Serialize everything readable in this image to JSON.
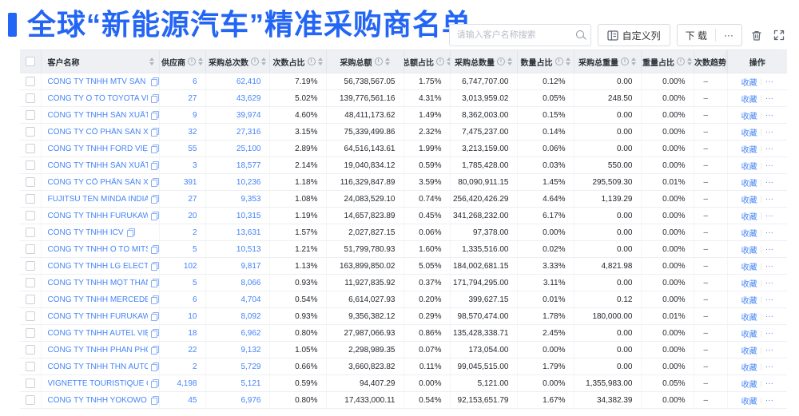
{
  "page": {
    "title": "全球“新能源汽车”精准采购商名单"
  },
  "colors": {
    "title_accent": "#2365F5",
    "link_blue": "#4584F8",
    "header_bg": "#EEF0F4"
  },
  "toolbar": {
    "search_placeholder": "请输入客户名称搜索",
    "custom_columns_label": "自定义列",
    "download_label": "下 载",
    "more_label": "···"
  },
  "icons": {
    "search": "magnifier",
    "custom_columns": "columns-grid",
    "download_more": "ellipsis",
    "trash": "trash-can",
    "fullscreen": "expand-arrows",
    "copy": "copy-squares",
    "info": "circle-i",
    "sort": "caret-up-down"
  },
  "table": {
    "columns": [
      {
        "key": "name",
        "label": "客户名称",
        "info": false,
        "sort": true
      },
      {
        "key": "supplier",
        "label": "供应商",
        "info": true,
        "sort": true
      },
      {
        "key": "purchases",
        "label": "采购总次数",
        "info": true,
        "sort": true
      },
      {
        "key": "count_pct",
        "label": "次数占比",
        "info": true,
        "sort": true
      },
      {
        "key": "amount",
        "label": "采购总额",
        "info": true,
        "sort": true
      },
      {
        "key": "amount_pct",
        "label": "总额占比",
        "info": true,
        "sort": true
      },
      {
        "key": "quantity",
        "label": "采购总数量",
        "info": true,
        "sort": true
      },
      {
        "key": "qty_pct",
        "label": "数量占比",
        "info": true,
        "sort": true
      },
      {
        "key": "weight",
        "label": "采购总重量",
        "info": true,
        "sort": true
      },
      {
        "key": "weight_pct",
        "label": "重量占比",
        "info": true,
        "sort": true
      },
      {
        "key": "trend",
        "label": "次数趋势",
        "info": false,
        "sort": false
      },
      {
        "key": "actions",
        "label": "操作",
        "info": false,
        "sort": false
      }
    ],
    "actions": {
      "favorite": "收藏",
      "more": "···"
    },
    "rows": [
      {
        "name": "CÔNG TY TNHH MTV SẢN XUẤ...",
        "supplier": "6",
        "purchases": "62,410",
        "count_pct": "7.19%",
        "amount": "56,738,567.05",
        "amount_pct": "1.75%",
        "quantity": "6,747,707.00",
        "qty_pct": "0.12%",
        "weight": "0.00",
        "weight_pct": "0.00%",
        "trend": "–"
      },
      {
        "name": "CÔNG TY Ô TÔ TOYOTA VIỆT ...",
        "supplier": "27",
        "purchases": "43,629",
        "count_pct": "5.02%",
        "amount": "139,776,561.16",
        "amount_pct": "4.31%",
        "quantity": "3,013,959.02",
        "qty_pct": "0.05%",
        "weight": "248.50",
        "weight_pct": "0.00%",
        "trend": "–"
      },
      {
        "name": "CÔNG TY TNHH SẢN XUẤT VÀ ...",
        "supplier": "9",
        "purchases": "39,974",
        "count_pct": "4.60%",
        "amount": "48,411,173.62",
        "amount_pct": "1.49%",
        "quantity": "8,362,003.00",
        "qty_pct": "0.15%",
        "weight": "0.00",
        "weight_pct": "0.00%",
        "trend": "–"
      },
      {
        "name": "CÔNG TY CỔ PHẦN SẢN XUẤT...",
        "supplier": "32",
        "purchases": "27,316",
        "count_pct": "3.15%",
        "amount": "75,339,499.86",
        "amount_pct": "2.32%",
        "quantity": "7,475,237.00",
        "qty_pct": "0.14%",
        "weight": "0.00",
        "weight_pct": "0.00%",
        "trend": "–"
      },
      {
        "name": "CÔNG TY TNHH FORD VIỆT NAM",
        "supplier": "55",
        "purchases": "25,100",
        "count_pct": "2.89%",
        "amount": "64,516,143.61",
        "amount_pct": "1.99%",
        "quantity": "3,213,159.00",
        "qty_pct": "0.06%",
        "weight": "0.00",
        "weight_pct": "0.00%",
        "trend": "–"
      },
      {
        "name": "CÔNG TY TNHH SẢN XUẤT VÀ ...",
        "supplier": "3",
        "purchases": "18,577",
        "count_pct": "2.14%",
        "amount": "19,040,834.12",
        "amount_pct": "0.59%",
        "quantity": "1,785,428.00",
        "qty_pct": "0.03%",
        "weight": "550.00",
        "weight_pct": "0.00%",
        "trend": "–"
      },
      {
        "name": "CÔNG TY CỔ PHẦN SẢN XUẤT...",
        "supplier": "391",
        "purchases": "10,236",
        "count_pct": "1.18%",
        "amount": "116,329,847.89",
        "amount_pct": "3.59%",
        "quantity": "80,090,911.15",
        "qty_pct": "1.45%",
        "weight": "295,509.30",
        "weight_pct": "0.01%",
        "trend": "–"
      },
      {
        "name": "FUJITSU TEN MINDA INDIA PVT...",
        "supplier": "27",
        "purchases": "9,353",
        "count_pct": "1.08%",
        "amount": "24,083,529.10",
        "amount_pct": "0.74%",
        "quantity": "256,420,426.29",
        "qty_pct": "4.64%",
        "weight": "1,139.29",
        "weight_pct": "0.00%",
        "trend": "–"
      },
      {
        "name": "CÔNG TY TNHH FURUKAWA A...",
        "supplier": "20",
        "purchases": "10,315",
        "count_pct": "1.19%",
        "amount": "14,657,823.89",
        "amount_pct": "0.45%",
        "quantity": "341,268,232.00",
        "qty_pct": "6.17%",
        "weight": "0.00",
        "weight_pct": "0.00%",
        "trend": "–"
      },
      {
        "name": "CÔNG TY TNHH ICV",
        "supplier": "2",
        "purchases": "13,631",
        "count_pct": "1.57%",
        "amount": "2,027,827.15",
        "amount_pct": "0.06%",
        "quantity": "97,378.00",
        "qty_pct": "0.00%",
        "weight": "0.00",
        "weight_pct": "0.00%",
        "trend": "–"
      },
      {
        "name": "CÔNG TY TNHH Ô TÔ MITSUBI...",
        "supplier": "5",
        "purchases": "10,513",
        "count_pct": "1.21%",
        "amount": "51,799,780.93",
        "amount_pct": "1.60%",
        "quantity": "1,335,516.00",
        "qty_pct": "0.02%",
        "weight": "0.00",
        "weight_pct": "0.00%",
        "trend": "–"
      },
      {
        "name": "CÔNG TY TNHH LG ELECTRON...",
        "supplier": "102",
        "purchases": "9,817",
        "count_pct": "1.13%",
        "amount": "163,899,850.02",
        "amount_pct": "5.05%",
        "quantity": "184,002,681.15",
        "qty_pct": "3.33%",
        "weight": "4,821.98",
        "weight_pct": "0.00%",
        "trend": "–"
      },
      {
        "name": "CÔNG TY TNHH MỘT THÀNH V...",
        "supplier": "5",
        "purchases": "8,066",
        "count_pct": "0.93%",
        "amount": "11,927,835.92",
        "amount_pct": "0.37%",
        "quantity": "171,794,295.00",
        "qty_pct": "3.11%",
        "weight": "0.00",
        "weight_pct": "0.00%",
        "trend": "–"
      },
      {
        "name": "CÔNG TY TNHH MERCEDES–B...",
        "supplier": "6",
        "purchases": "4,704",
        "count_pct": "0.54%",
        "amount": "6,614,027.93",
        "amount_pct": "0.20%",
        "quantity": "399,627.15",
        "qty_pct": "0.01%",
        "weight": "0.12",
        "weight_pct": "0.00%",
        "trend": "–"
      },
      {
        "name": "CÔNG TY TNHH FURUKAWA A...",
        "supplier": "10",
        "purchases": "8,092",
        "count_pct": "0.93%",
        "amount": "9,356,382.12",
        "amount_pct": "0.29%",
        "quantity": "98,570,474.00",
        "qty_pct": "1.78%",
        "weight": "180,000.00",
        "weight_pct": "0.01%",
        "trend": "–"
      },
      {
        "name": "CÔNG TY TNHH AUTEL VIỆT N...",
        "supplier": "18",
        "purchases": "6,962",
        "count_pct": "0.80%",
        "amount": "27,987,066.93",
        "amount_pct": "0.86%",
        "quantity": "135,428,338.71",
        "qty_pct": "2.45%",
        "weight": "0.00",
        "weight_pct": "0.00%",
        "trend": "–"
      },
      {
        "name": "CÔNG TY TNHH PHÂN PHỐI T...",
        "supplier": "22",
        "purchases": "9,132",
        "count_pct": "1.05%",
        "amount": "2,298,989.35",
        "amount_pct": "0.07%",
        "quantity": "173,054.00",
        "qty_pct": "0.00%",
        "weight": "0.00",
        "weight_pct": "0.00%",
        "trend": "–"
      },
      {
        "name": "CÔNG TY TNHH THN AUTOPAR...",
        "supplier": "2",
        "purchases": "5,729",
        "count_pct": "0.66%",
        "amount": "3,660,823.82",
        "amount_pct": "0.11%",
        "quantity": "99,045,515.00",
        "qty_pct": "1.79%",
        "weight": "0.00",
        "weight_pct": "0.00%",
        "trend": "–"
      },
      {
        "name": "VIGNETTE TOURISTIQUE G UNI...",
        "supplier": "4,198",
        "purchases": "5,121",
        "count_pct": "0.59%",
        "amount": "94,407.29",
        "amount_pct": "0.00%",
        "quantity": "5,121.00",
        "qty_pct": "0.00%",
        "weight": "1,355,983.00",
        "weight_pct": "0.05%",
        "trend": "–"
      },
      {
        "name": "CÔNG TY TNHH YOKOWO VIỆT...",
        "supplier": "45",
        "purchases": "6,976",
        "count_pct": "0.80%",
        "amount": "17,433,000.11",
        "amount_pct": "0.54%",
        "quantity": "92,153,651.79",
        "qty_pct": "1.67%",
        "weight": "34,382.39",
        "weight_pct": "0.00%",
        "trend": "–"
      }
    ]
  }
}
